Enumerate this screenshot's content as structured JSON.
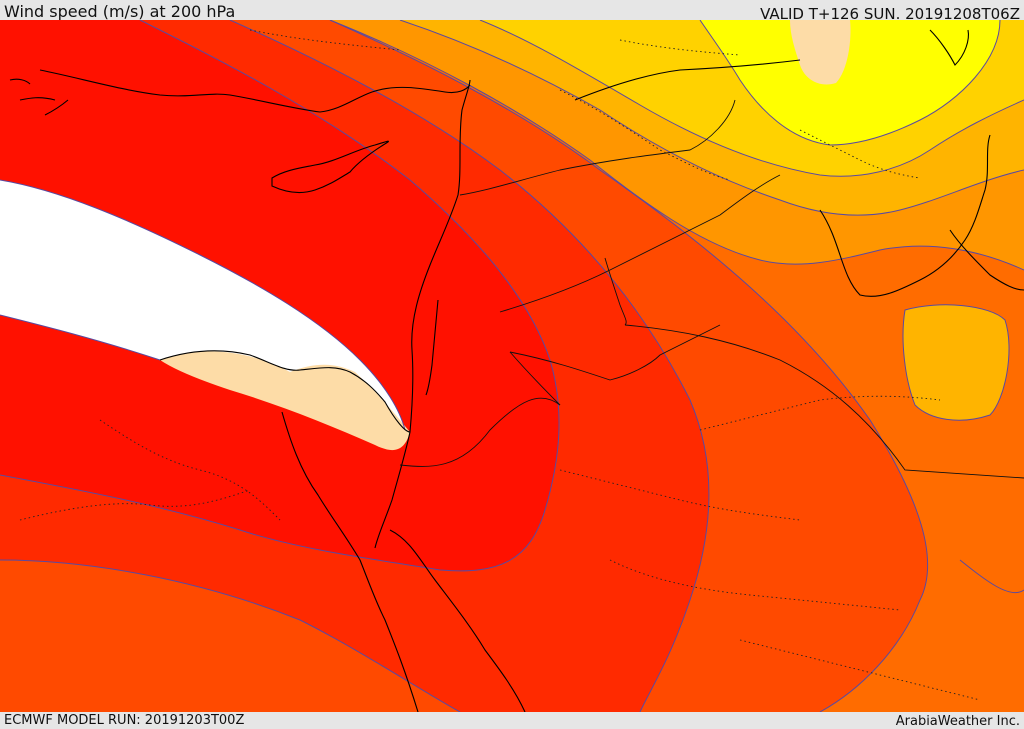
{
  "header": {
    "title": "Wind speed (m/s) at 200 hPa",
    "valid": "VALID T+126 SUN. 20191208T06Z"
  },
  "footer": {
    "model_run": "ECMWF MODEL RUN: 20191203T00Z",
    "credit": "ArabiaWeather Inc."
  },
  "map": {
    "fill_bands": [
      {
        "band": "white-core",
        "color": "#ffffff"
      },
      {
        "band": "beige",
        "color": "#fddca7"
      },
      {
        "band": "red",
        "color": "#ff1100"
      },
      {
        "band": "red-orange",
        "color": "#ff2a00"
      },
      {
        "band": "orange-red",
        "color": "#ff4a00"
      },
      {
        "band": "orange",
        "color": "#ff6c00"
      },
      {
        "band": "light-orange",
        "color": "#ff9600"
      },
      {
        "band": "amber",
        "color": "#ffb400"
      },
      {
        "band": "gold",
        "color": "#ffd200"
      },
      {
        "band": "yellow",
        "color": "#ffff00"
      }
    ],
    "contour_color": "#5a4aa0",
    "coastline_color": "#000000"
  }
}
